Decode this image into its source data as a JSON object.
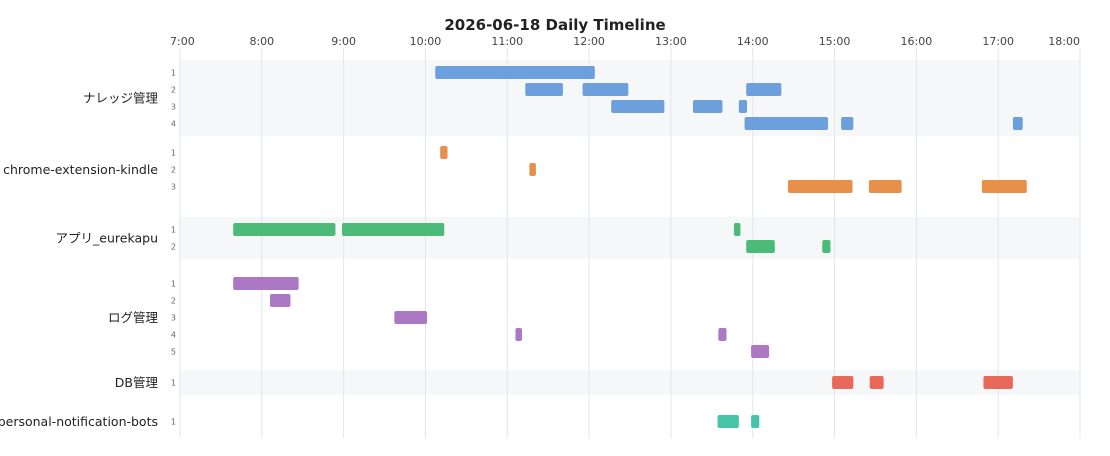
{
  "chart_data": {
    "type": "timeline",
    "title": "2026-06-18 Daily Timeline",
    "x_ticks": [
      "7:00",
      "8:00",
      "9:00",
      "10:00",
      "11:00",
      "12:00",
      "13:00",
      "14:00",
      "15:00",
      "16:00",
      "17:00",
      "18:00"
    ],
    "xlim_hours": [
      7,
      18
    ],
    "grid": true,
    "projects": [
      {
        "name": "ナレッジ管理",
        "color": "#6ca0dc",
        "lanes": [
          {
            "label": "1",
            "bars": [
              [
                10.12,
                12.07
              ]
            ]
          },
          {
            "label": "2",
            "bars": [
              [
                11.22,
                11.68
              ],
              [
                11.92,
                12.48
              ],
              [
                13.92,
                14.35
              ]
            ]
          },
          {
            "label": "3",
            "bars": [
              [
                12.27,
                12.92
              ],
              [
                13.27,
                13.63
              ],
              [
                13.83,
                13.93
              ]
            ]
          },
          {
            "label": "4",
            "bars": [
              [
                13.9,
                14.92
              ],
              [
                15.08,
                15.23
              ],
              [
                17.18,
                17.3
              ]
            ]
          }
        ]
      },
      {
        "name": "chrome-extension-kindle",
        "color": "#e8904a",
        "lanes": [
          {
            "label": "1",
            "bars": [
              [
                10.18,
                10.27
              ]
            ]
          },
          {
            "label": "2",
            "bars": [
              [
                11.27,
                11.35
              ]
            ]
          },
          {
            "label": "3",
            "bars": [
              [
                14.43,
                15.22
              ],
              [
                15.42,
                15.82
              ],
              [
                16.8,
                17.35
              ]
            ]
          }
        ]
      },
      {
        "name": "アプリ_eurekapu",
        "color": "#4cbb7a",
        "lanes": [
          {
            "label": "1",
            "bars": [
              [
                7.65,
                8.9
              ],
              [
                8.98,
                10.23
              ],
              [
                13.77,
                13.85
              ]
            ]
          },
          {
            "label": "2",
            "bars": [
              [
                13.92,
                14.27
              ],
              [
                14.85,
                14.95
              ]
            ]
          }
        ]
      },
      {
        "name": "ログ管理",
        "color": "#ac78c4",
        "lanes": [
          {
            "label": "1",
            "bars": [
              [
                7.65,
                8.45
              ]
            ]
          },
          {
            "label": "2",
            "bars": [
              [
                8.1,
                8.35
              ]
            ]
          },
          {
            "label": "3",
            "bars": [
              [
                9.77,
                9.85
              ],
              [
                9.62,
                10.02
              ]
            ]
          },
          {
            "label": "4",
            "bars": [
              [
                11.1,
                11.18
              ],
              [
                13.58,
                13.68
              ]
            ]
          },
          {
            "label": "5",
            "bars": [
              [
                13.98,
                14.2
              ]
            ]
          }
        ]
      },
      {
        "name": "DB管理",
        "color": "#e8685a",
        "lanes": [
          {
            "label": "1",
            "bars": [
              [
                14.97,
                15.23
              ],
              [
                15.43,
                15.6
              ],
              [
                16.82,
                17.18
              ]
            ]
          }
        ]
      },
      {
        "name": "personal-notification-bots",
        "color": "#45c4a8",
        "lanes": [
          {
            "label": "1",
            "bars": [
              [
                13.57,
                13.83
              ],
              [
                13.98,
                14.08
              ]
            ]
          }
        ]
      }
    ]
  }
}
